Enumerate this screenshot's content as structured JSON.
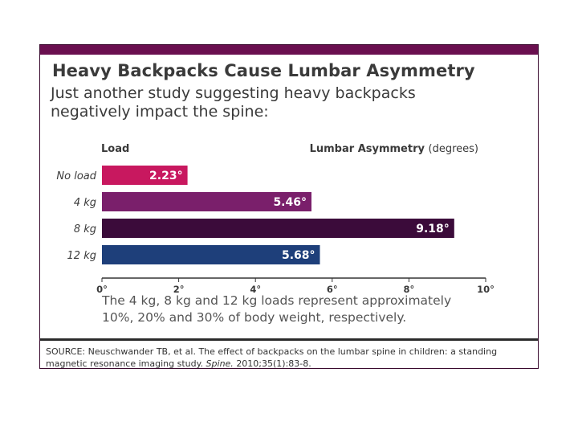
{
  "title": "Heavy Backpacks Cause Lumbar Asymmetry",
  "subtitle": "Just another study suggesting heavy backpacks negatively impact the spine:",
  "footnote": "The 4 kg, 8 kg and 12 kg loads represent approximately 10%, 20% and 30% of body weight, respectively.",
  "source": {
    "prefix": "SOURCE: Neuschwander TB, et al. The effect of backpacks on the lumbar spine in children: a standing magnetic resonance imaging study.",
    "journal": "Spine.",
    "suffix": "2010;35(1):83-8."
  },
  "colors": {
    "frame": "#6a0f4f",
    "bars": [
      "#c8185f",
      "#7a1f6b",
      "#3b0b3a",
      "#1e3f7a"
    ],
    "axis": "#333333",
    "text": "#3a3a3a"
  },
  "chart_data": {
    "type": "bar",
    "orientation": "horizontal",
    "category_header": "Load",
    "value_header_bold": "Lumbar Asymmetry",
    "value_header_unit": "(degrees)",
    "categories": [
      "No load",
      "4 kg",
      "8 kg",
      "12 kg"
    ],
    "values": [
      2.23,
      5.46,
      9.18,
      5.68
    ],
    "value_labels": [
      "2.23°",
      "5.46°",
      "9.18°",
      "5.68°"
    ],
    "xlim": [
      0,
      10
    ],
    "xticks": [
      0,
      2,
      4,
      6,
      8,
      10
    ],
    "xtick_labels": [
      "0°",
      "2°",
      "4°",
      "6°",
      "8°",
      "10°"
    ],
    "grid": false
  }
}
